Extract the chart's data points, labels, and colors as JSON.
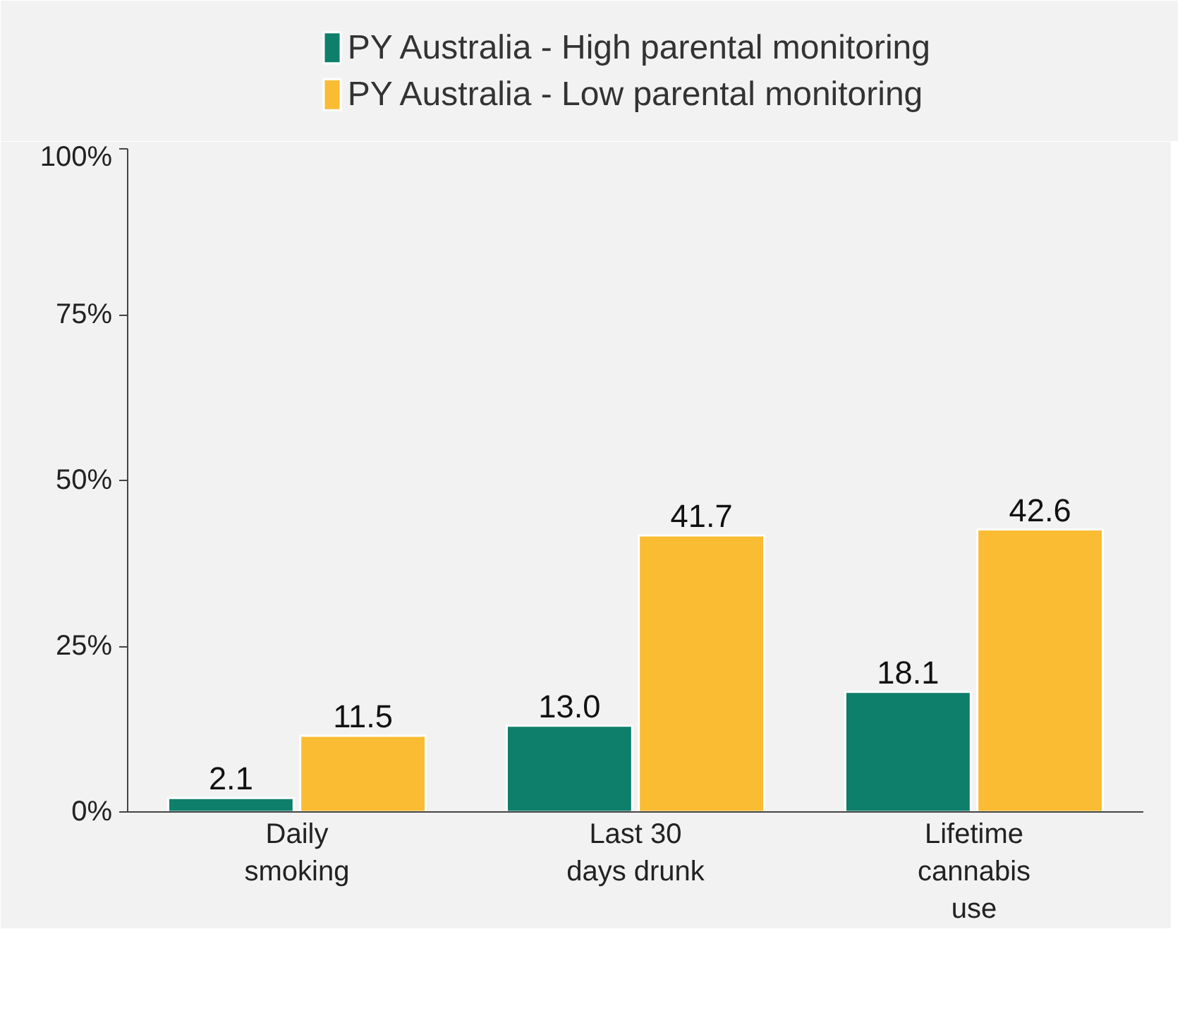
{
  "chart_data": {
    "type": "bar",
    "categories": [
      "Daily\nsmoking",
      "Last 30\ndays drunk",
      "Lifetime\ncannabis\nuse"
    ],
    "series": [
      {
        "name": "PY Australia - High parental monitoring",
        "color": "#0e7f6a",
        "values": [
          2.1,
          13.0,
          18.1
        ],
        "value_labels": [
          "2.1",
          "13.0",
          "18.1"
        ]
      },
      {
        "name": "PY Australia - Low parental monitoring",
        "color": "#f9bc33",
        "values": [
          11.5,
          41.7,
          42.6
        ],
        "value_labels": [
          "11.5",
          "41.7",
          "42.6"
        ]
      }
    ],
    "ylim": [
      0,
      100
    ],
    "yticks": [
      {
        "value": 0,
        "label": "0%"
      },
      {
        "value": 25,
        "label": "25%"
      },
      {
        "value": 50,
        "label": "50%"
      },
      {
        "value": 75,
        "label": "75%"
      },
      {
        "value": 100,
        "label": "100%"
      }
    ],
    "grid": false,
    "legend": "top"
  }
}
